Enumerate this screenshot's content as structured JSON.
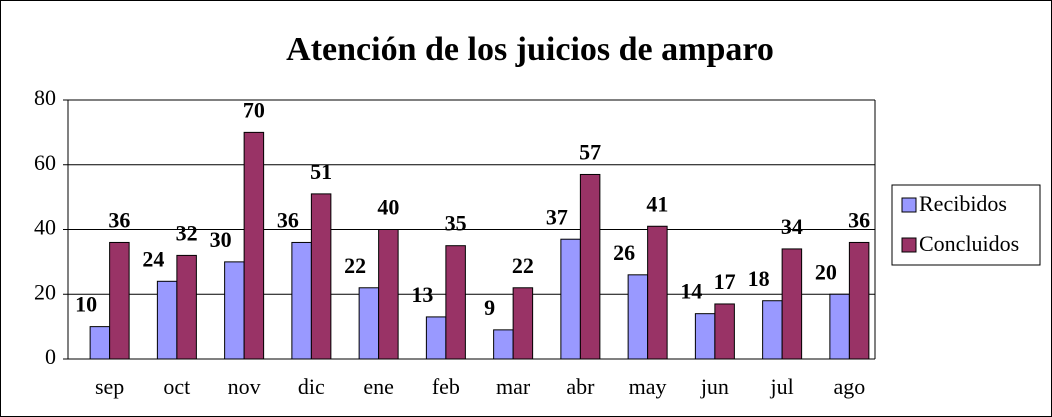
{
  "chart_data": {
    "type": "bar",
    "title": "Atención de los juicios de amparo",
    "categories": [
      "sep",
      "oct",
      "nov",
      "dic",
      "ene",
      "feb",
      "mar",
      "abr",
      "may",
      "jun",
      "jul",
      "ago"
    ],
    "series": [
      {
        "name": "Recibidos",
        "color": "#9999ff",
        "values": [
          10,
          24,
          30,
          36,
          22,
          13,
          9,
          37,
          26,
          14,
          18,
          20
        ]
      },
      {
        "name": "Concluidos",
        "color": "#993366",
        "values": [
          36,
          32,
          70,
          51,
          40,
          35,
          22,
          57,
          41,
          17,
          34,
          36
        ]
      }
    ],
    "ylim": [
      0,
      80
    ],
    "yticks": [
      0,
      20,
      40,
      60,
      80
    ],
    "grid": true,
    "legend": "right"
  }
}
